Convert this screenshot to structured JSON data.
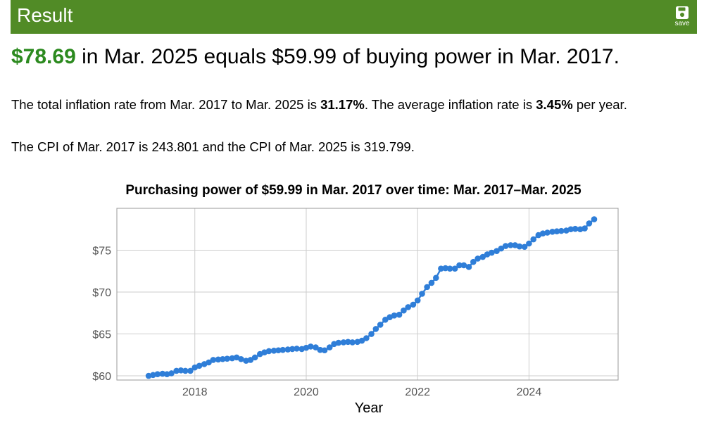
{
  "header": {
    "title": "Result",
    "save_label": "save"
  },
  "headline": {
    "amount": "$78.69",
    "text": " in Mar. 2025 equals $59.99 of buying power in Mar. 2017."
  },
  "para1": {
    "pre": "The total inflation rate from Mar. 2017 to Mar. 2025 is ",
    "total_rate": "31.17%",
    "mid": ". The average inflation rate is ",
    "avg_rate": "3.45%",
    "post": " per year."
  },
  "para2": {
    "text": "The CPI of Mar. 2017 is 243.801 and the CPI of Mar. 2025 is 319.799."
  },
  "colors": {
    "header_bg": "#518b26",
    "amount": "#2c8a1f",
    "line": "#2f7ed8",
    "grid": "#cccccc"
  },
  "chart_data": {
    "type": "line",
    "title": "Purchasing power of $59.99 in Mar. 2017 over time: Mar. 2017–Mar. 2025",
    "xlabel": "Year",
    "ylabel": "",
    "xlim": [
      2016.6,
      2025.6
    ],
    "ylim": [
      59.5,
      80.0
    ],
    "x_ticks": [
      2018,
      2020,
      2022,
      2024
    ],
    "x_tick_labels": [
      "2018",
      "2020",
      "2022",
      "2024"
    ],
    "y_ticks": [
      60,
      65,
      70,
      75
    ],
    "y_tick_labels": [
      "$60",
      "$65",
      "$70",
      "$75"
    ],
    "grid": true,
    "legend": "none",
    "markers": true,
    "series": [
      {
        "x": [
          2017.17,
          2017.25,
          2017.33,
          2017.42,
          2017.5,
          2017.58,
          2017.67,
          2017.75,
          2017.83,
          2017.92,
          2018.0,
          2018.08,
          2018.17,
          2018.25,
          2018.33,
          2018.42,
          2018.5,
          2018.58,
          2018.67,
          2018.75,
          2018.83,
          2018.92,
          2019.0,
          2019.08,
          2019.17,
          2019.25,
          2019.33,
          2019.42,
          2019.5,
          2019.58,
          2019.67,
          2019.75,
          2019.83,
          2019.92,
          2020.0,
          2020.08,
          2020.17,
          2020.25,
          2020.33,
          2020.42,
          2020.5,
          2020.58,
          2020.67,
          2020.75,
          2020.83,
          2020.92,
          2021.0,
          2021.08,
          2021.17,
          2021.25,
          2021.33,
          2021.42,
          2021.5,
          2021.58,
          2021.67,
          2021.75,
          2021.83,
          2021.92,
          2022.0,
          2022.08,
          2022.17,
          2022.25,
          2022.33,
          2022.42,
          2022.5,
          2022.58,
          2022.67,
          2022.75,
          2022.83,
          2022.92,
          2023.0,
          2023.08,
          2023.17,
          2023.25,
          2023.33,
          2023.42,
          2023.5,
          2023.58,
          2023.67,
          2023.75,
          2023.83,
          2023.92,
          2024.0,
          2024.08,
          2024.17,
          2024.25,
          2024.33,
          2024.42,
          2024.5,
          2024.58,
          2024.67,
          2024.75,
          2024.83,
          2024.92,
          2025.0,
          2025.08,
          2025.17
        ],
        "y": [
          60.0,
          60.1,
          60.2,
          60.25,
          60.2,
          60.3,
          60.6,
          60.65,
          60.6,
          60.6,
          61.0,
          61.2,
          61.4,
          61.6,
          61.9,
          61.95,
          62.0,
          62.05,
          62.1,
          62.2,
          62.0,
          61.8,
          61.9,
          62.2,
          62.6,
          62.8,
          62.95,
          63.0,
          63.05,
          63.1,
          63.15,
          63.2,
          63.25,
          63.2,
          63.35,
          63.5,
          63.4,
          63.1,
          63.05,
          63.4,
          63.8,
          63.95,
          64.0,
          64.05,
          64.0,
          64.05,
          64.2,
          64.5,
          65.0,
          65.6,
          66.1,
          66.7,
          67.0,
          67.2,
          67.3,
          67.8,
          68.2,
          68.5,
          69.0,
          69.8,
          70.6,
          71.1,
          71.7,
          72.8,
          72.85,
          72.8,
          72.8,
          73.2,
          73.2,
          73.0,
          73.6,
          74.0,
          74.2,
          74.5,
          74.7,
          74.9,
          75.2,
          75.5,
          75.6,
          75.6,
          75.45,
          75.4,
          75.8,
          76.3,
          76.8,
          77.0,
          77.1,
          77.2,
          77.25,
          77.3,
          77.35,
          77.5,
          77.55,
          77.5,
          77.6,
          78.2,
          78.69
        ]
      }
    ]
  }
}
